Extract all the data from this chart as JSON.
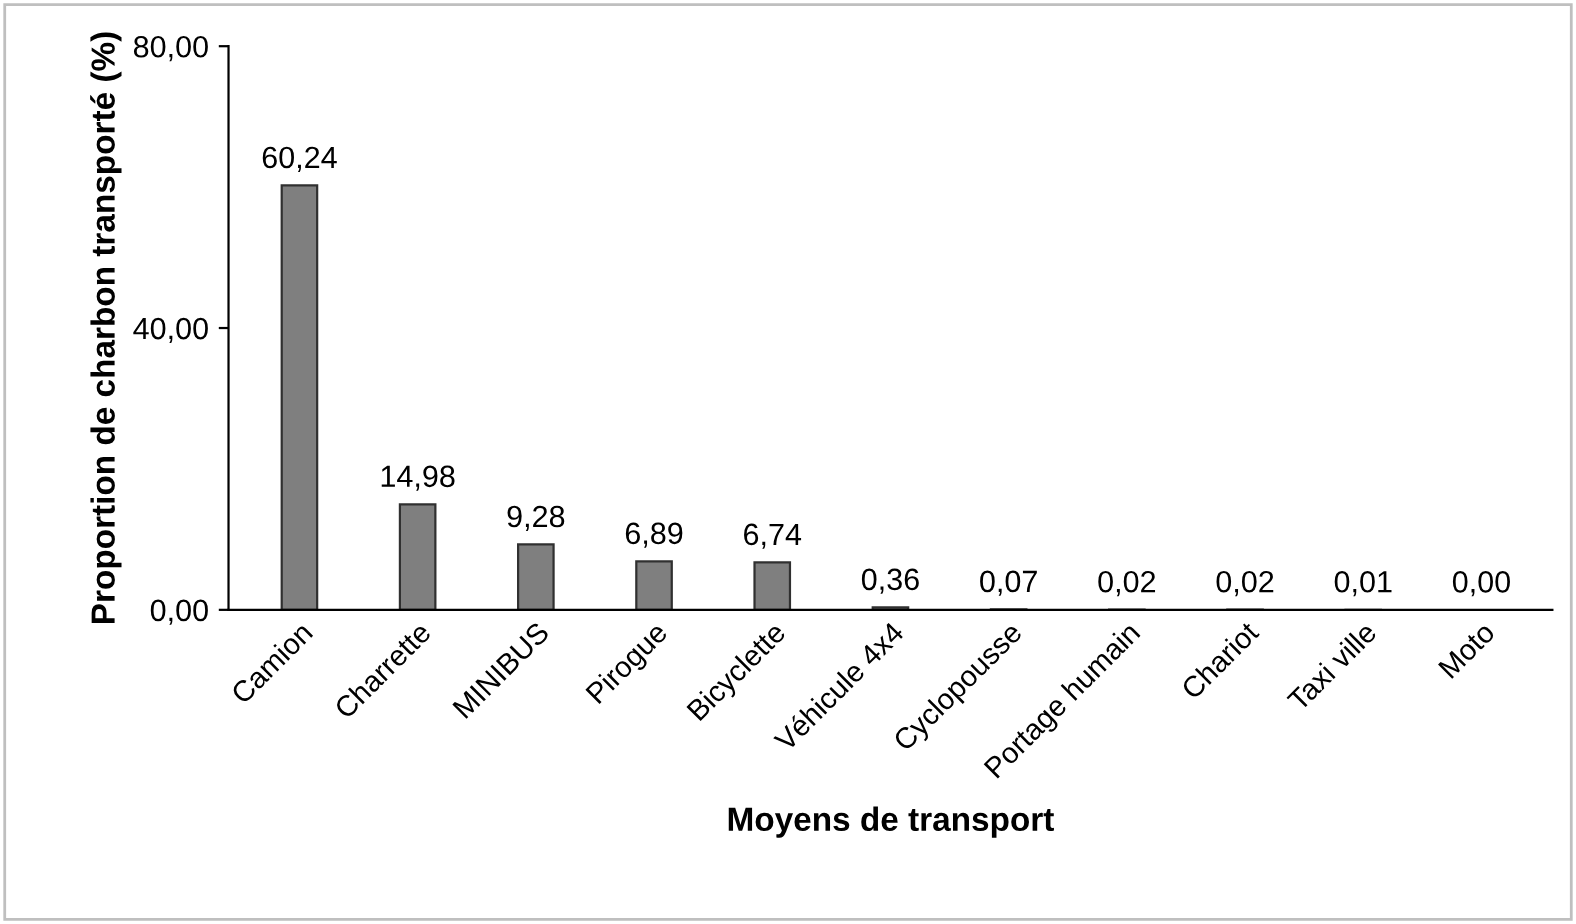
{
  "chart_data": {
    "type": "bar",
    "xlabel": "Moyens de transport",
    "ylabel": "Proportion de charbon transporté (%)",
    "categories": [
      "Camion",
      "Charrette",
      "MINIBUS",
      "Pirogue",
      "Bicyclette",
      "Véhicule 4x4",
      "Cyclopousse",
      "Portage humain",
      "Chariot",
      "Taxi ville",
      "Moto"
    ],
    "values": [
      60.24,
      14.98,
      9.28,
      6.89,
      6.74,
      0.36,
      0.07,
      0.02,
      0.02,
      0.01,
      0.0
    ],
    "value_labels": [
      "60,24",
      "14,98",
      "9,28",
      "6,89",
      "6,74",
      "0,36",
      "0,07",
      "0,02",
      "0,02",
      "0,01",
      "0,00"
    ],
    "color": "#7f7f7f",
    "ylim": [
      0,
      80
    ],
    "yticks": [
      {
        "value": 0,
        "label": "0,00"
      },
      {
        "value": 40,
        "label": "40,00"
      },
      {
        "value": 80,
        "label": "80,00"
      }
    ],
    "grid": false,
    "legend": false
  }
}
